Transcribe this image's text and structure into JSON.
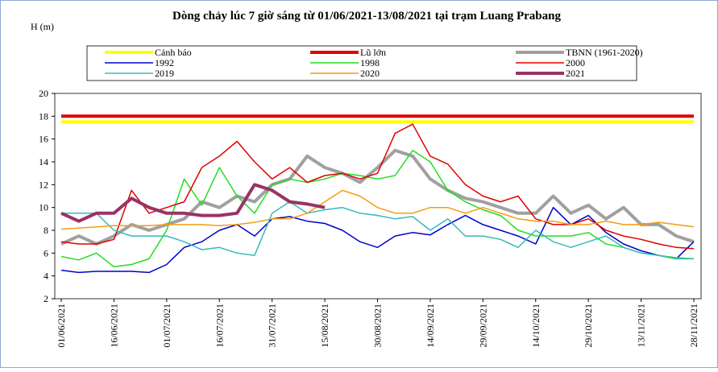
{
  "chart_data": {
    "type": "line",
    "title": "Dòng chảy lúc 7 giờ sáng từ 01/06/2021-13/08/2021 tại trạm Luang Prabang",
    "y_label": "H (m)",
    "categories": [
      "01/06/2021",
      null,
      null,
      "16/06/2021",
      null,
      null,
      "01/07/2021",
      null,
      null,
      "16/07/2021",
      null,
      null,
      "31/07/2021",
      null,
      null,
      "15/08/2021",
      null,
      null,
      "30/08/2021",
      null,
      null,
      "14/09/2021",
      null,
      null,
      "29/09/2021",
      null,
      null,
      "14/10/2021",
      null,
      null,
      "29/10/2021",
      null,
      null,
      "13/11/2021",
      null,
      null,
      "28/11/2021"
    ],
    "ylim": [
      2,
      20
    ],
    "yticks": [
      2,
      4,
      6,
      8,
      10,
      12,
      14,
      16,
      18,
      20
    ],
    "series": [
      {
        "name": "Cảnh báo",
        "color": "#ffff00",
        "width": 4,
        "values": [
          17.5,
          17.5,
          17.5,
          17.5,
          17.5,
          17.5,
          17.5,
          17.5,
          17.5,
          17.5,
          17.5,
          17.5,
          17.5,
          17.5,
          17.5,
          17.5,
          17.5,
          17.5,
          17.5,
          17.5,
          17.5,
          17.5,
          17.5,
          17.5,
          17.5,
          17.5,
          17.5,
          17.5,
          17.5,
          17.5,
          17.5,
          17.5,
          17.5,
          17.5,
          17.5,
          17.5,
          17.5
        ]
      },
      {
        "name": "Lũ lớn",
        "color": "#e00000",
        "width": 4,
        "values": [
          18,
          18,
          18,
          18,
          18,
          18,
          18,
          18,
          18,
          18,
          18,
          18,
          18,
          18,
          18,
          18,
          18,
          18,
          18,
          18,
          18,
          18,
          18,
          18,
          18,
          18,
          18,
          18,
          18,
          18,
          18,
          18,
          18,
          18,
          18,
          18,
          18
        ]
      },
      {
        "name": "TBNN (1961-2020)",
        "color": "#a0a0a0",
        "width": 4,
        "values": [
          6.8,
          7.5,
          6.8,
          7.5,
          8.5,
          8.0,
          8.5,
          9.0,
          10.5,
          10.0,
          11.0,
          10.5,
          12.0,
          12.5,
          14.5,
          13.5,
          13.0,
          12.2,
          13.5,
          15.0,
          14.5,
          12.5,
          11.5,
          10.8,
          10.5,
          10.0,
          9.5,
          9.5,
          11.0,
          9.5,
          10.2,
          9.0,
          10.0,
          8.5,
          8.5,
          7.5,
          7.0
        ]
      },
      {
        "name": "1992",
        "color": "#0000cc",
        "width": 1.5,
        "values": [
          4.5,
          4.3,
          4.4,
          4.4,
          4.4,
          4.3,
          5.0,
          6.5,
          7.0,
          8.0,
          8.5,
          7.5,
          9.0,
          9.2,
          8.8,
          8.6,
          8.0,
          7.0,
          6.5,
          7.5,
          7.8,
          7.6,
          8.5,
          9.3,
          8.5,
          8.0,
          7.5,
          6.8,
          10.0,
          8.5,
          9.3,
          7.8,
          6.8,
          6.2,
          5.8,
          5.5,
          7.0
        ]
      },
      {
        "name": "1998",
        "color": "#22dd22",
        "width": 1.5,
        "values": [
          5.7,
          5.4,
          6.0,
          4.8,
          5.0,
          5.5,
          8.0,
          12.5,
          10.2,
          13.5,
          11.0,
          9.5,
          12.0,
          12.5,
          12.2,
          12.5,
          13.0,
          12.8,
          12.5,
          12.8,
          15.0,
          14.0,
          11.5,
          10.5,
          9.8,
          9.3,
          8.0,
          7.5,
          7.5,
          7.5,
          7.8,
          6.8,
          6.5,
          6.0,
          5.8,
          5.6,
          5.5
        ]
      },
      {
        "name": "2000",
        "color": "#e00000",
        "width": 1.5,
        "values": [
          7.0,
          6.8,
          6.8,
          7.2,
          11.5,
          9.5,
          10.0,
          10.5,
          13.5,
          14.5,
          15.8,
          14.0,
          12.5,
          13.5,
          12.2,
          12.8,
          13.0,
          12.5,
          13.0,
          16.5,
          17.3,
          14.5,
          13.8,
          12.0,
          11.0,
          10.5,
          11.0,
          9.0,
          8.5,
          8.5,
          9.0,
          8.0,
          7.5,
          7.2,
          6.8,
          6.5,
          6.4
        ]
      },
      {
        "name": "2019",
        "color": "#33bbbb",
        "width": 1.5,
        "values": [
          9.5,
          9.5,
          9.5,
          8.0,
          7.5,
          7.5,
          7.5,
          7.0,
          6.3,
          6.5,
          6.0,
          5.8,
          9.5,
          10.5,
          9.5,
          9.8,
          10.0,
          9.5,
          9.3,
          9.0,
          9.2,
          8.0,
          9.0,
          7.5,
          7.5,
          7.2,
          6.5,
          8.0,
          7.0,
          6.5,
          7.0,
          7.5,
          6.5,
          6.0,
          5.8,
          5.5,
          5.5
        ]
      },
      {
        "name": "2020",
        "color": "#f39c12",
        "width": 1.5,
        "values": [
          8.1,
          8.2,
          8.3,
          8.4,
          8.4,
          8.4,
          8.5,
          8.5,
          8.5,
          8.4,
          8.5,
          8.7,
          9.0,
          9.0,
          9.5,
          10.5,
          11.5,
          11.0,
          10.0,
          9.5,
          9.5,
          10.0,
          10.0,
          9.5,
          10.0,
          9.5,
          9.0,
          8.8,
          8.8,
          8.5,
          8.5,
          8.8,
          8.5,
          8.5,
          8.7,
          8.5,
          8.3
        ]
      },
      {
        "name": "2021",
        "color": "#993366",
        "width": 4,
        "values": [
          9.5,
          8.8,
          9.5,
          9.5,
          10.8,
          10.0,
          9.5,
          9.5,
          9.3,
          9.3,
          9.5,
          12.0,
          11.5,
          10.5,
          10.3,
          10.0,
          null,
          null,
          null,
          null,
          null,
          null,
          null,
          null,
          null,
          null,
          null,
          null,
          null,
          null,
          null,
          null,
          null,
          null,
          null,
          null,
          null
        ]
      }
    ]
  }
}
